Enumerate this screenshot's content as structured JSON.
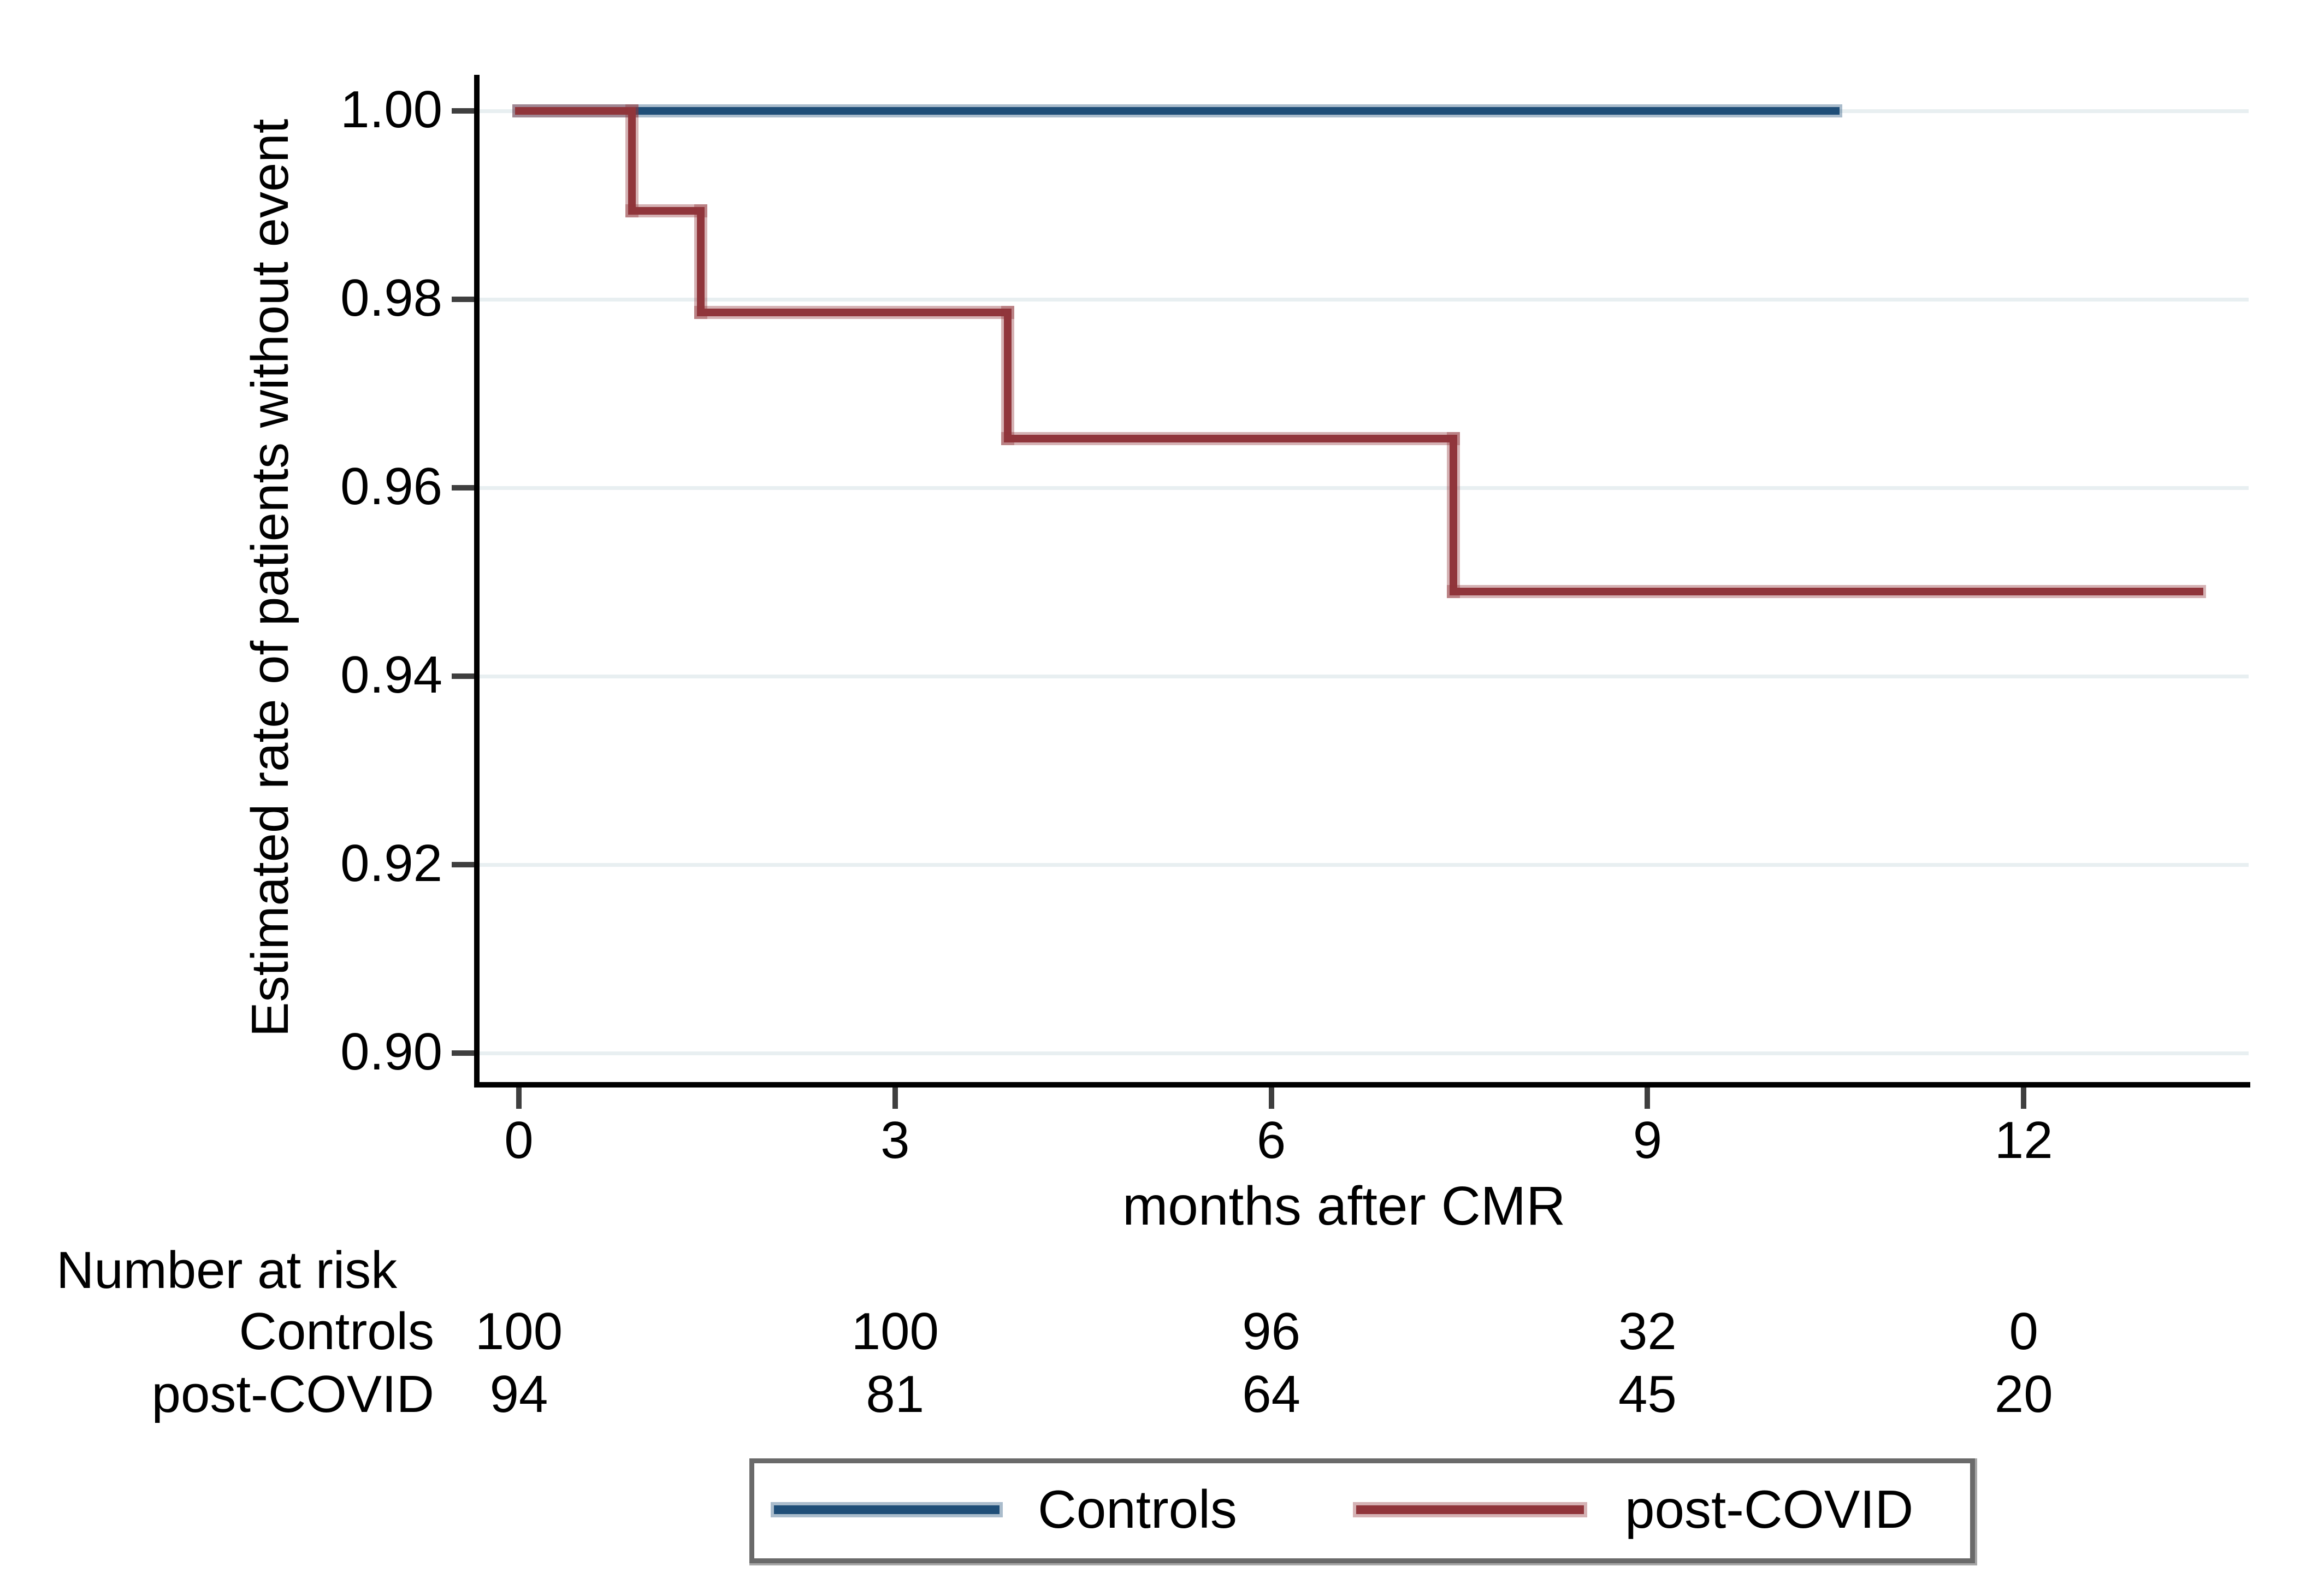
{
  "chart_data": {
    "type": "line",
    "subtype": "kaplan-meier-step",
    "title": "",
    "xlabel": "months after CMR",
    "ylabel": "Estimated rate of patients without event",
    "xlim": [
      0,
      13.8
    ],
    "xticks": [
      0,
      3,
      6,
      9,
      12
    ],
    "xtick_labels": [
      "0",
      "3",
      "6",
      "9",
      "12"
    ],
    "ylim": [
      0.895,
      1.003
    ],
    "yticks": [
      1.0,
      0.98,
      0.96,
      0.94,
      0.92,
      0.9
    ],
    "ytick_labels": [
      "1.00",
      "0.98",
      "0.96",
      "0.94",
      "0.92",
      "0.90"
    ],
    "grid": "horizontal-only",
    "gridline_color": "#e8eff1",
    "legend_position": "bottom-box",
    "series": [
      {
        "name": "Controls",
        "color": "#1f4e78",
        "points": [
          [
            0,
            1.0
          ],
          [
            10.5,
            1.0
          ]
        ]
      },
      {
        "name": "post-COVID",
        "color": "#90353b",
        "points": [
          [
            0,
            1.0
          ],
          [
            0.9,
            1.0
          ],
          [
            0.9,
            0.9894
          ],
          [
            1.45,
            0.9894
          ],
          [
            1.45,
            0.9786
          ],
          [
            3.9,
            0.9786
          ],
          [
            3.9,
            0.9652
          ],
          [
            7.45,
            0.9652
          ],
          [
            7.45,
            0.949
          ],
          [
            13.4,
            0.949
          ]
        ]
      }
    ]
  },
  "risk_table": {
    "title": "Number at risk",
    "months": [
      0,
      3,
      6,
      9,
      12
    ],
    "rows": [
      {
        "label": "Controls",
        "values": [
          "100",
          "100",
          "96",
          "32",
          "0"
        ]
      },
      {
        "label": "post-COVID",
        "values": [
          "94",
          "81",
          "64",
          "45",
          "20"
        ]
      }
    ]
  },
  "legend": {
    "items": [
      {
        "label": "Controls",
        "color": "#1f4e78"
      },
      {
        "label": "post-COVID",
        "color": "#90353b"
      }
    ]
  },
  "colors": {
    "controls": "#1f4e78",
    "post_covid": "#90353b",
    "gridline": "#e8eff1",
    "axis": "#000000",
    "tick": "#3f3f3f",
    "legend_border": "#6a6a6a",
    "background": "#ffffff"
  }
}
